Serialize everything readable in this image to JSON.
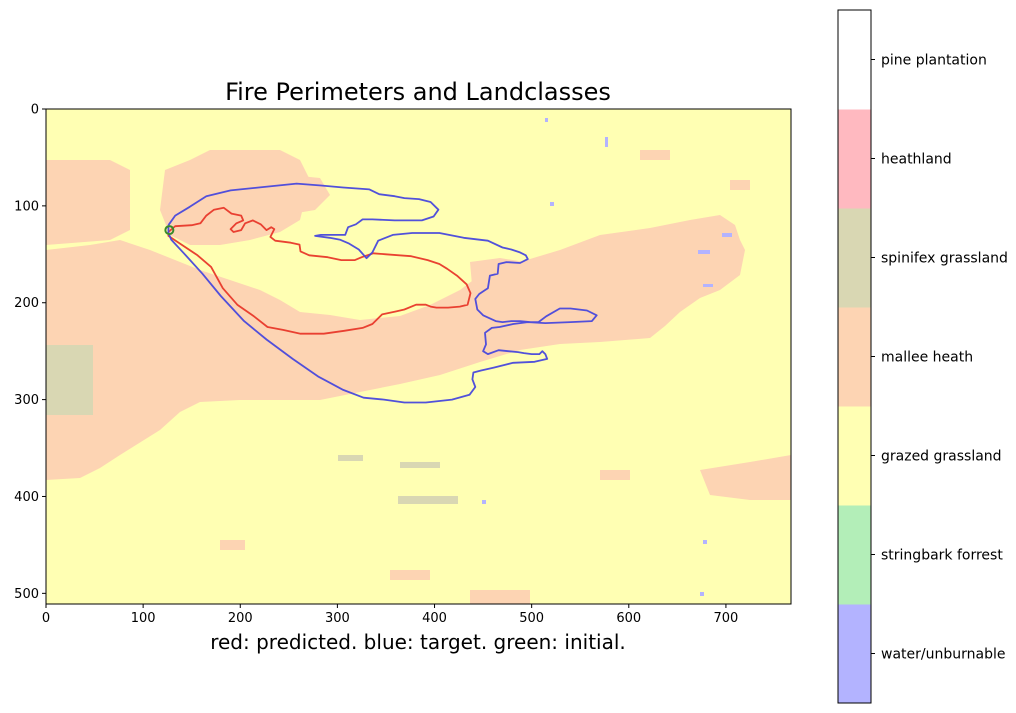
{
  "chart_data": {
    "type": "heatmap",
    "title": "Fire Perimeters and Landclasses",
    "xlabel": "red: predicted. blue: target. green: initial.",
    "ylabel": "",
    "x_ticks": [
      0,
      100,
      200,
      300,
      400,
      500,
      600,
      700
    ],
    "y_ticks": [
      0,
      100,
      200,
      300,
      400,
      500
    ],
    "xlim": [
      0,
      767
    ],
    "ylim": [
      511,
      0
    ],
    "legend": "colorbar-right",
    "grid": false,
    "landclasses": [
      {
        "name": "water/unburnable",
        "color": "#b3b3ff"
      },
      {
        "name": "stringbark forrest",
        "color": "#b3eeb8"
      },
      {
        "name": "grazed grassland",
        "color": "#ffffb3"
      },
      {
        "name": "mallee heath",
        "color": "#fdd4b3"
      },
      {
        "name": "spinifex grassland",
        "color": "#d9d7b3"
      },
      {
        "name": "heathland",
        "color": "#ffb9c0"
      },
      {
        "name": "pine plantation",
        "color": "#ffffff"
      }
    ],
    "series": [
      {
        "color": "#e8382a",
        "points": [
          [
            126,
            127
          ],
          [
            133,
            121
          ],
          [
            150,
            120
          ],
          [
            159,
            118
          ],
          [
            165,
            110
          ],
          [
            173,
            104
          ],
          [
            183,
            102
          ],
          [
            191,
            108
          ],
          [
            201,
            110
          ],
          [
            203,
            115
          ],
          [
            196,
            118
          ],
          [
            190,
            124
          ],
          [
            193,
            127
          ],
          [
            201,
            125
          ],
          [
            205,
            118
          ],
          [
            213,
            115
          ],
          [
            221,
            119
          ],
          [
            227,
            125
          ],
          [
            232,
            122
          ],
          [
            235,
            124
          ],
          [
            231,
            132
          ],
          [
            236,
            136
          ],
          [
            252,
            138
          ],
          [
            261,
            140
          ],
          [
            262,
            147
          ],
          [
            271,
            151
          ],
          [
            290,
            153
          ],
          [
            304,
            156
          ],
          [
            318,
            156
          ],
          [
            325,
            153
          ],
          [
            337,
            149
          ],
          [
            350,
            150
          ],
          [
            376,
            152
          ],
          [
            393,
            156
          ],
          [
            405,
            160
          ],
          [
            413,
            165
          ],
          [
            423,
            172
          ],
          [
            433,
            181
          ],
          [
            437,
            190
          ],
          [
            434,
            202
          ],
          [
            426,
            204
          ],
          [
            414,
            205
          ],
          [
            402,
            205
          ],
          [
            396,
            204
          ],
          [
            391,
            202
          ],
          [
            381,
            202
          ],
          [
            369,
            207
          ],
          [
            360,
            209
          ],
          [
            346,
            212
          ],
          [
            336,
            222
          ],
          [
            326,
            226
          ],
          [
            307,
            229
          ],
          [
            286,
            232
          ],
          [
            262,
            232
          ],
          [
            244,
            228
          ],
          [
            228,
            225
          ],
          [
            214,
            214
          ],
          [
            197,
            202
          ],
          [
            182,
            185
          ],
          [
            170,
            163
          ],
          [
            156,
            151
          ],
          [
            138,
            139
          ],
          [
            126,
            131
          ],
          [
            126,
            127
          ]
        ]
      },
      {
        "color": "#4848dc",
        "points": [
          [
            126,
            120
          ],
          [
            133,
            110
          ],
          [
            148,
            101
          ],
          [
            165,
            90
          ],
          [
            190,
            84
          ],
          [
            219,
            81
          ],
          [
            258,
            77
          ],
          [
            283,
            79
          ],
          [
            306,
            81
          ],
          [
            333,
            83
          ],
          [
            343,
            88
          ],
          [
            359,
            90
          ],
          [
            369,
            92
          ],
          [
            384,
            93
          ],
          [
            396,
            96
          ],
          [
            404,
            104
          ],
          [
            399,
            111
          ],
          [
            387,
            115
          ],
          [
            359,
            115
          ],
          [
            336,
            114
          ],
          [
            326,
            114
          ],
          [
            319,
            119
          ],
          [
            311,
            122
          ],
          [
            308,
            130
          ],
          [
            283,
            130
          ],
          [
            277,
            131
          ],
          [
            292,
            133
          ],
          [
            303,
            135
          ],
          [
            312,
            139
          ],
          [
            322,
            145
          ],
          [
            330,
            154
          ],
          [
            336,
            148
          ],
          [
            342,
            136
          ],
          [
            357,
            130
          ],
          [
            377,
            128
          ],
          [
            405,
            128
          ],
          [
            430,
            133
          ],
          [
            455,
            136
          ],
          [
            470,
            143
          ],
          [
            479,
            145
          ],
          [
            488,
            148
          ],
          [
            494,
            151
          ],
          [
            496,
            155
          ],
          [
            488,
            159
          ],
          [
            474,
            158
          ],
          [
            466,
            160
          ],
          [
            465,
            170
          ],
          [
            457,
            172
          ],
          [
            455,
            185
          ],
          [
            452,
            187
          ],
          [
            446,
            191
          ],
          [
            442,
            196
          ],
          [
            444,
            207
          ],
          [
            450,
            213
          ],
          [
            463,
            219
          ],
          [
            470,
            220
          ],
          [
            479,
            219
          ],
          [
            488,
            219
          ],
          [
            499,
            220
          ],
          [
            507,
            220
          ],
          [
            515,
            214
          ],
          [
            529,
            206
          ],
          [
            540,
            206
          ],
          [
            557,
            208
          ],
          [
            567,
            213
          ],
          [
            562,
            219
          ],
          [
            540,
            220
          ],
          [
            514,
            221
          ],
          [
            496,
            220
          ],
          [
            481,
            222
          ],
          [
            467,
            225
          ],
          [
            459,
            226
          ],
          [
            452,
            231
          ],
          [
            453,
            243
          ],
          [
            450,
            250
          ],
          [
            455,
            253
          ],
          [
            466,
            249
          ],
          [
            476,
            250
          ],
          [
            486,
            251
          ],
          [
            492,
            252
          ],
          [
            500,
            253
          ],
          [
            508,
            253
          ],
          [
            511,
            250
          ],
          [
            514,
            253
          ],
          [
            516,
            258
          ],
          [
            503,
            261
          ],
          [
            481,
            262
          ],
          [
            461,
            267
          ],
          [
            448,
            270
          ],
          [
            440,
            272
          ],
          [
            439,
            279
          ],
          [
            442,
            287
          ],
          [
            436,
            295
          ],
          [
            418,
            300
          ],
          [
            391,
            303
          ],
          [
            369,
            303
          ],
          [
            348,
            300
          ],
          [
            327,
            298
          ],
          [
            306,
            290
          ],
          [
            280,
            276
          ],
          [
            254,
            258
          ],
          [
            227,
            238
          ],
          [
            204,
            219
          ],
          [
            180,
            193
          ],
          [
            161,
            170
          ],
          [
            142,
            149
          ],
          [
            129,
            135
          ],
          [
            126,
            128
          ],
          [
            126,
            120
          ]
        ]
      },
      {
        "color": "#3a8a2a",
        "points": [
          [
            127,
            125
          ]
        ]
      }
    ]
  }
}
